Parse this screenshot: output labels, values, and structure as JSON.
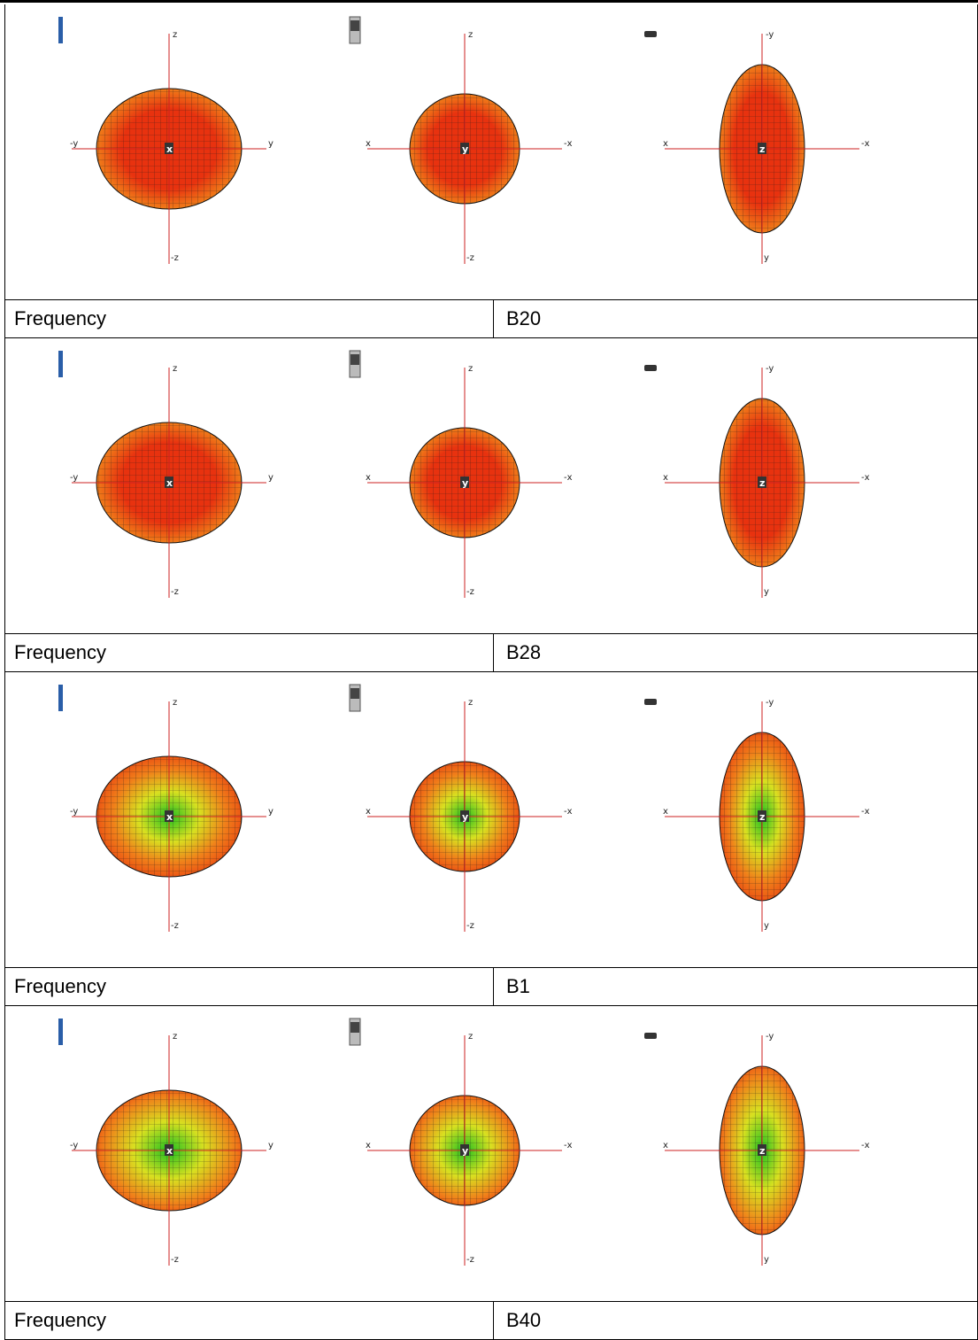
{
  "rows": [
    {
      "frequency_label": "Frequency",
      "band": "B20",
      "gradient": "g-red"
    },
    {
      "frequency_label": "Frequency",
      "band": "B28",
      "gradient": "g-red"
    },
    {
      "frequency_label": "Frequency",
      "band": "B1",
      "gradient": "g-green"
    },
    {
      "frequency_label": "Frequency",
      "band": "B40",
      "gradient": "g-yellow"
    }
  ],
  "axis_labels": {
    "view1": {
      "top": "z",
      "bottom": "-z",
      "left": "-y",
      "right": "y",
      "center": "x"
    },
    "view2": {
      "top": "z",
      "bottom": "-z",
      "left": "x",
      "right": "-x",
      "center": "y"
    },
    "view3": {
      "top": "-y",
      "bottom": "y",
      "left": "x",
      "right": "-x",
      "center": "z"
    }
  },
  "icons": [
    "phone-side-icon",
    "phone-front-icon",
    "phone-top-icon"
  ],
  "colors": {
    "axis": "#cc2222",
    "mesh": "#1a1a1a",
    "red": "#e8320f",
    "orange": "#f0801a",
    "yellow": "#d8e020",
    "green": "#20c020",
    "icon_blue": "#2a5ea8"
  }
}
